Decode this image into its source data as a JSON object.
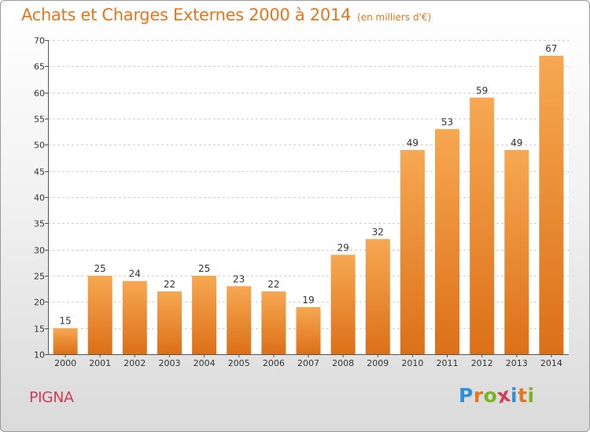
{
  "title": "Achats et Charges Externes 2000 à 2014",
  "subtitle": "(en milliers d'€)",
  "commune": "PIGNA",
  "brand": {
    "letters": [
      "P",
      "r",
      "o",
      "x",
      "i",
      "t",
      "i"
    ],
    "colors": [
      "#2f8fd8",
      "#e8751a",
      "#7ab51d",
      "#d23c5a",
      "#2f8fd8",
      "#e8751a",
      "#7ab51d"
    ]
  },
  "colors": {
    "title": "#e8751a",
    "bar_top": "#f7a852",
    "bar_bottom": "#dc7018",
    "commune": "#d23c5a"
  },
  "chart_data": {
    "type": "bar",
    "categories": [
      "2000",
      "2001",
      "2002",
      "2003",
      "2004",
      "2005",
      "2006",
      "2007",
      "2008",
      "2009",
      "2010",
      "2011",
      "2012",
      "2013",
      "2014"
    ],
    "values": [
      15,
      25,
      24,
      22,
      25,
      23,
      22,
      19,
      29,
      32,
      49,
      53,
      59,
      49,
      67
    ],
    "ylim": [
      10,
      70
    ],
    "yticks": [
      10,
      15,
      20,
      25,
      30,
      35,
      40,
      45,
      50,
      55,
      60,
      65,
      70
    ],
    "grid": true,
    "legend": "none"
  }
}
